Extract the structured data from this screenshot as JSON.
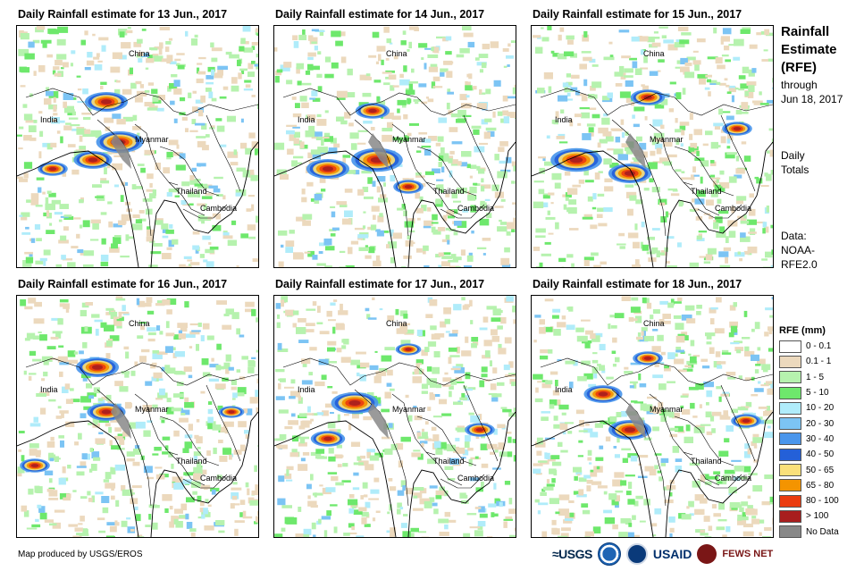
{
  "panels": [
    {
      "title": "Daily Rainfall estimate for 13 Jun., 2017",
      "variant": 0
    },
    {
      "title": "Daily Rainfall estimate for 14 Jun., 2017",
      "variant": 1
    },
    {
      "title": "Daily Rainfall estimate for 15 Jun., 2017",
      "variant": 2
    },
    {
      "title": "Daily Rainfall estimate for 16 Jun., 2017",
      "variant": 3
    },
    {
      "title": "Daily Rainfall estimate for 17 Jun., 2017",
      "variant": 4
    },
    {
      "title": "Daily Rainfall estimate for 18 Jun., 2017",
      "variant": 5
    }
  ],
  "map_labels": {
    "china": "China",
    "india": "India",
    "myanmar": "Myanmar",
    "thailand": "Thailand",
    "cambodia": "Cambodia"
  },
  "side": {
    "title_line1": "Rainfall",
    "title_line2": "Estimate",
    "title_line3": "(RFE)",
    "through": "through",
    "through_date": "Jun 18, 2017",
    "daily": "Daily",
    "totals": "Totals",
    "data_label": "Data:",
    "data_src1": "NOAA-",
    "data_src2": "RFE2.0"
  },
  "legend": {
    "title": "RFE (mm)",
    "items": [
      {
        "label": "0 - 0.1",
        "color": "#ffffff"
      },
      {
        "label": "0.1 - 1",
        "color": "#ecd9bd"
      },
      {
        "label": "1 - 5",
        "color": "#b6f2ae"
      },
      {
        "label": "5 - 10",
        "color": "#6ee86c"
      },
      {
        "label": "10 - 20",
        "color": "#b0ecfa"
      },
      {
        "label": "20 - 30",
        "color": "#7cc4f4"
      },
      {
        "label": "30 - 40",
        "color": "#4a96ec"
      },
      {
        "label": "40 - 50",
        "color": "#2460d8"
      },
      {
        "label": "50 - 65",
        "color": "#fae07a"
      },
      {
        "label": "65 - 80",
        "color": "#f49400"
      },
      {
        "label": "80 - 100",
        "color": "#ea3c10"
      },
      {
        "label": "> 100",
        "color": "#a81e1e"
      },
      {
        "label": "No Data",
        "color": "#888888"
      }
    ]
  },
  "footer": {
    "credit": "Map produced by USGS/EROS",
    "logo_usgs": "≈USGS",
    "logo_usaid": "USAID",
    "logo_fews": "FEWS NET"
  }
}
